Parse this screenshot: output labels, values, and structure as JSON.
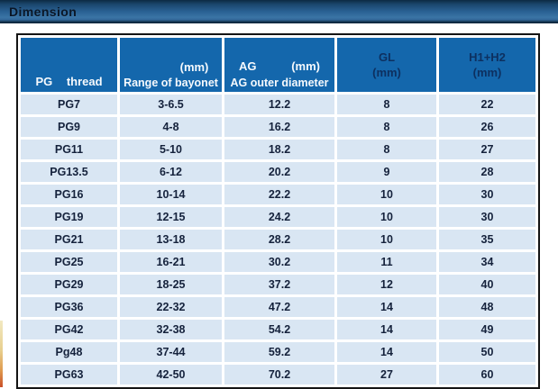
{
  "title_bar": {
    "title": "Dimension"
  },
  "colors": {
    "bar_gradient_mid": "#2a6294",
    "header_bg": "#1467ac",
    "header_text_light": "#f5f9fd",
    "header_text_dark": "#0d3060",
    "row_bg": "#d9e6f3",
    "body_text": "#15223c",
    "table_border": "#141414"
  },
  "table": {
    "header": {
      "col1": {
        "line2": "PG thread"
      },
      "col2": {
        "line1": "(mm)",
        "line2": "Range of bayonet"
      },
      "col3": {
        "line1_left": "AG",
        "line1_right": "(mm)",
        "line2": "AG outer diameter"
      },
      "col4": {
        "line1": "GL",
        "line2": "(mm)"
      },
      "col5": {
        "line1": "H1+H2",
        "line2": "(mm)"
      }
    },
    "rows": [
      [
        "PG7",
        "3-6.5",
        "12.2",
        "8",
        "22"
      ],
      [
        "PG9",
        "4-8",
        "16.2",
        "8",
        "26"
      ],
      [
        "PG11",
        "5-10",
        "18.2",
        "8",
        "27"
      ],
      [
        "PG13.5",
        "6-12",
        "20.2",
        "9",
        "28"
      ],
      [
        "PG16",
        "10-14",
        "22.2",
        "10",
        "30"
      ],
      [
        "PG19",
        "12-15",
        "24.2",
        "10",
        "30"
      ],
      [
        "PG21",
        "13-18",
        "28.2",
        "10",
        "35"
      ],
      [
        "PG25",
        "16-21",
        "30.2",
        "11",
        "34"
      ],
      [
        "PG29",
        "18-25",
        "37.2",
        "12",
        "40"
      ],
      [
        "PG36",
        "22-32",
        "47.2",
        "14",
        "48"
      ],
      [
        "PG42",
        "32-38",
        "54.2",
        "14",
        "49"
      ],
      [
        "Pg48",
        "37-44",
        "59.2",
        "14",
        "50"
      ],
      [
        "PG63",
        "42-50",
        "70.2",
        "27",
        "60"
      ]
    ]
  }
}
